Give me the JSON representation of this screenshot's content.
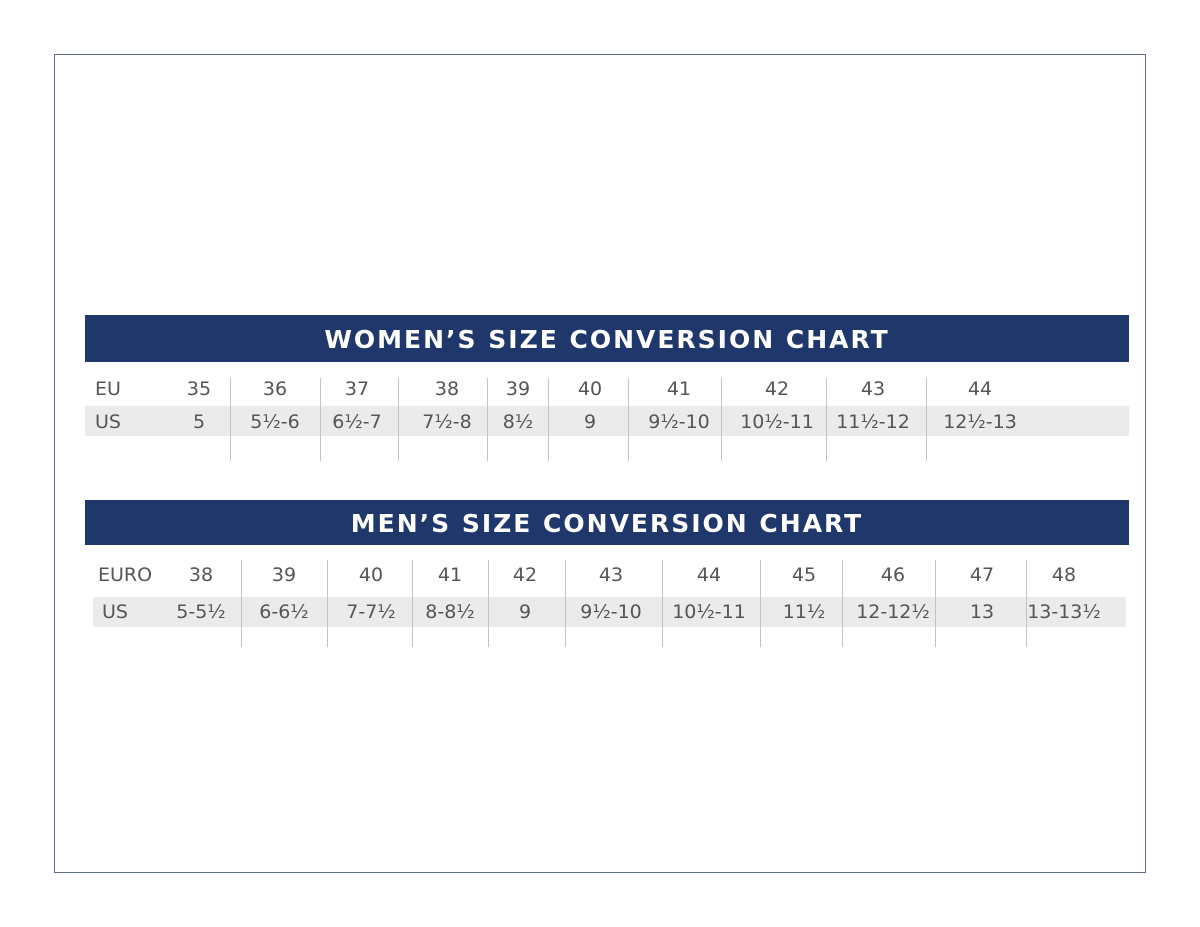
{
  "colors": {
    "banner": "#1f376a",
    "frame": "#5b6b88",
    "row_shade": "#ebebeb",
    "text": "#555555"
  },
  "women": {
    "title": "WOMEN’S SIZE CONVERSION CHART",
    "row1_label": "EU",
    "row2_label": "US",
    "eu": [
      "35",
      "36",
      "37",
      "38",
      "39",
      "40",
      "41",
      "42",
      "43",
      "44"
    ],
    "us": [
      "5",
      "5½-6",
      "6½-7",
      "7½-8",
      "8½",
      "9",
      "9½-10",
      "10½-11",
      "11½-12",
      "12½-13"
    ]
  },
  "men": {
    "title": "MEN’S SIZE CONVERSION CHART",
    "row1_label": "EURO",
    "row2_label": "US",
    "eu": [
      "38",
      "39",
      "40",
      "41",
      "42",
      "43",
      "44",
      "45",
      "46",
      "47",
      "48"
    ],
    "us": [
      "5-5½",
      "6-6½",
      "7-7½",
      "8-8½",
      "9",
      "9½-10",
      "10½-11",
      "11½",
      "12-12½",
      "13",
      "13-13½"
    ]
  }
}
